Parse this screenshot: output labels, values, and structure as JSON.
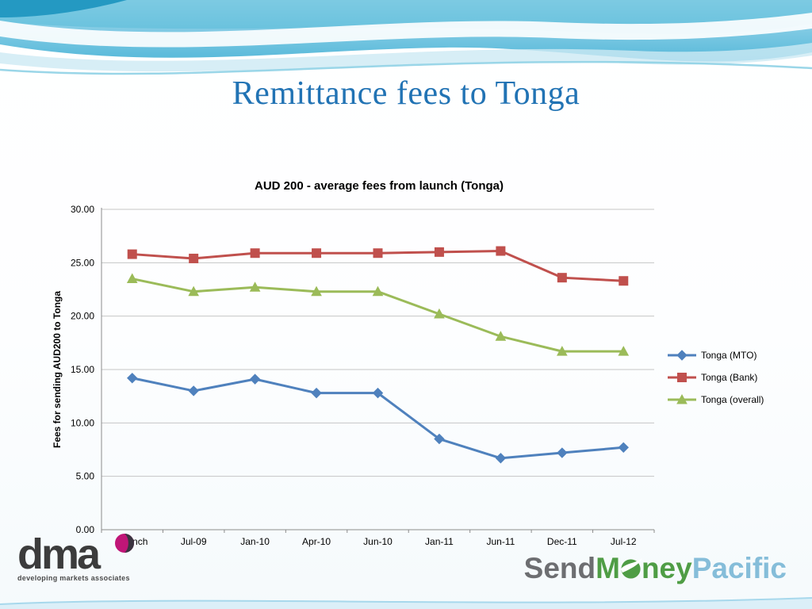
{
  "slide": {
    "title": "Remittance fees to Tonga"
  },
  "chart_data": {
    "type": "line",
    "title": "AUD 200 - average fees from launch (Tonga)",
    "ylabel": "Fees for sending AUD200 to Tonga",
    "xlabel": "",
    "categories": [
      "Launch",
      "Jul-09",
      "Jan-10",
      "Apr-10",
      "Jun-10",
      "Jan-11",
      "Jun-11",
      "Dec-11",
      "Jul-12"
    ],
    "ylim": [
      0,
      30
    ],
    "ytick_step": 5,
    "grid": true,
    "legend_position": "right",
    "series": [
      {
        "name": "Tonga (MTO)",
        "color": "#4F81BD",
        "marker": "diamond",
        "values": [
          14.2,
          13.0,
          14.1,
          12.8,
          12.8,
          8.5,
          6.7,
          7.2,
          7.7
        ]
      },
      {
        "name": "Tonga (Bank)",
        "color": "#C0504D",
        "marker": "square",
        "values": [
          25.8,
          25.4,
          25.9,
          25.9,
          25.9,
          26.0,
          26.1,
          23.6,
          23.3
        ]
      },
      {
        "name": "Tonga (overall)",
        "color": "#9BBB59",
        "marker": "triangle",
        "values": [
          23.5,
          22.3,
          22.7,
          22.3,
          22.3,
          20.2,
          18.1,
          16.7,
          16.7
        ]
      }
    ]
  },
  "footer": {
    "dma": {
      "text": "dma",
      "subtext": "developing markets associates"
    },
    "smp": {
      "part1": "Send",
      "part2": "M",
      "part3": "ney",
      "part4": "Pacific"
    }
  }
}
